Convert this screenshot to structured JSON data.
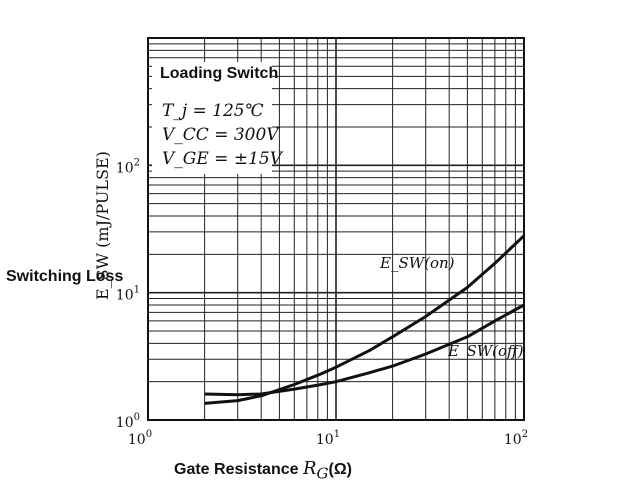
{
  "chart_data": {
    "type": "line",
    "x_scale": "log",
    "y_scale": "log",
    "xlim": [
      1,
      100
    ],
    "ylim": [
      1,
      1000
    ],
    "x_ticks": [
      {
        "value": 1,
        "base": "10",
        "exp": "0"
      },
      {
        "value": 10,
        "base": "10",
        "exp": "1"
      },
      {
        "value": 100,
        "base": "10",
        "exp": "2"
      }
    ],
    "y_ticks": [
      {
        "value": 1,
        "base": "10",
        "exp": "0"
      },
      {
        "value": 10,
        "base": "10",
        "exp": "1"
      },
      {
        "value": 100,
        "base": "10",
        "exp": "2"
      }
    ],
    "xlabel": "Gate Resistance",
    "xlabel_symbol": "R",
    "xlabel_symbol_sub": "G",
    "xlabel_unit": "(Ω)",
    "ylabel": "E_SW (mJ/PULSE)",
    "side_label": "Switching Loss",
    "annotation_title": "Loading Switch",
    "conditions": [
      "T_j = 125℃",
      "V_CC = 300V",
      "V_GE = ±15V"
    ],
    "grid": true,
    "series": [
      {
        "name": "E_SW(on)",
        "x": [
          2,
          3,
          4,
          6,
          8,
          10,
          15,
          20,
          30,
          50,
          70,
          100
        ],
        "y": [
          1.35,
          1.42,
          1.55,
          1.9,
          2.25,
          2.6,
          3.5,
          4.5,
          6.5,
          11,
          17,
          28
        ]
      },
      {
        "name": "E_SW(off)",
        "x": [
          2,
          3,
          4,
          6,
          8,
          10,
          15,
          20,
          30,
          50,
          70,
          100
        ],
        "y": [
          1.6,
          1.58,
          1.6,
          1.75,
          1.88,
          2.0,
          2.35,
          2.65,
          3.3,
          4.5,
          6.0,
          8.0
        ]
      }
    ],
    "colors": {
      "line": "#111111",
      "grid": "#222222",
      "background": "#ffffff"
    }
  }
}
